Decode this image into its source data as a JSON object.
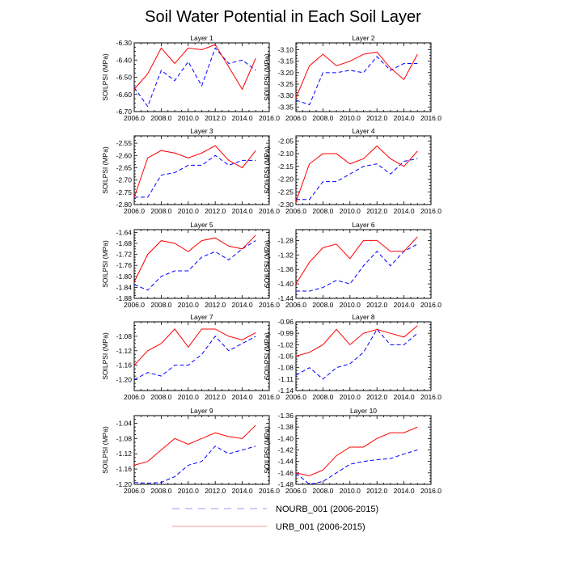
{
  "title": "Soil Water Potential in Each Soil Layer",
  "colors": {
    "nourb": "#0000ff",
    "urb": "#ff0000",
    "legend_nourb": "#9a9af5",
    "legend_urb": "#f29a9a"
  },
  "legend": [
    {
      "label": "NOURB_001 (2006-2015)",
      "style": "dashed",
      "color_key": "nourb"
    },
    {
      "label": "URB_001 (2006-2015)",
      "style": "solid",
      "color_key": "urb"
    }
  ],
  "chart_data": [
    {
      "type": "line",
      "title": "Layer 1",
      "ylabel": "SOILPSI  (MPa)",
      "xlim": [
        2006,
        2016
      ],
      "xticks": [
        2006,
        2008,
        2010,
        2012,
        2014,
        2016
      ],
      "xtick_labels": [
        "2006.0",
        "2008.0",
        "2010.0",
        "2012.0",
        "2014.0",
        "2016.0"
      ],
      "ylim": [
        -6.7,
        -6.3
      ],
      "yticks": [
        -6.7,
        -6.6,
        -6.5,
        -6.4,
        -6.3
      ],
      "ytick_labels": [
        "-6.70",
        "-6.60",
        "-6.50",
        "-6.40",
        "-6.30"
      ],
      "x": [
        2006,
        2007,
        2008,
        2009,
        2010,
        2011,
        2012,
        2013,
        2014,
        2015
      ],
      "series": [
        {
          "name": "NOURB_001 (2006-2015)",
          "values": [
            -6.56,
            -6.67,
            -6.46,
            -6.52,
            -6.41,
            -6.55,
            -6.33,
            -6.42,
            -6.4,
            -6.46
          ]
        },
        {
          "name": "URB_001 (2006-2015)",
          "values": [
            -6.57,
            -6.48,
            -6.33,
            -6.42,
            -6.33,
            -6.34,
            -6.31,
            -6.44,
            -6.57,
            -6.39
          ]
        }
      ]
    },
    {
      "type": "line",
      "title": "Layer 2",
      "ylabel": "SOILPSI  (MPa)",
      "xlim": [
        2006,
        2016
      ],
      "xticks": [
        2006,
        2008,
        2010,
        2012,
        2014,
        2016
      ],
      "xtick_labels": [
        "2006.0",
        "2008.0",
        "2010.0",
        "2012.0",
        "2014.0",
        "2016.0"
      ],
      "ylim": [
        -3.37,
        -3.07
      ],
      "yticks": [
        -3.35,
        -3.3,
        -3.25,
        -3.2,
        -3.15,
        -3.1
      ],
      "ytick_labels": [
        "-3.35",
        "-3.30",
        "-3.25",
        "-3.20",
        "-3.15",
        "-3.10"
      ],
      "x": [
        2006,
        2007,
        2008,
        2009,
        2010,
        2011,
        2012,
        2013,
        2014,
        2015
      ],
      "series": [
        {
          "name": "NOURB_001 (2006-2015)",
          "values": [
            -3.32,
            -3.34,
            -3.2,
            -3.2,
            -3.19,
            -3.2,
            -3.13,
            -3.19,
            -3.16,
            -3.16
          ]
        },
        {
          "name": "URB_001 (2006-2015)",
          "values": [
            -3.31,
            -3.17,
            -3.12,
            -3.17,
            -3.15,
            -3.12,
            -3.11,
            -3.18,
            -3.23,
            -3.12
          ]
        }
      ]
    },
    {
      "type": "line",
      "title": "Layer 3",
      "ylabel": "SOILPSI  (MPa)",
      "xlim": [
        2006,
        2016
      ],
      "xticks": [
        2006,
        2008,
        2010,
        2012,
        2014,
        2016
      ],
      "xtick_labels": [
        "2006.0",
        "2008.0",
        "2010.0",
        "2012.0",
        "2014.0",
        "2016.0"
      ],
      "ylim": [
        -2.8,
        -2.52
      ],
      "yticks": [
        -2.8,
        -2.75,
        -2.7,
        -2.65,
        -2.6,
        -2.55
      ],
      "ytick_labels": [
        "-2.80",
        "-2.75",
        "-2.70",
        "-2.65",
        "-2.60",
        "-2.55"
      ],
      "x": [
        2006,
        2007,
        2008,
        2009,
        2010,
        2011,
        2012,
        2013,
        2014,
        2015
      ],
      "series": [
        {
          "name": "NOURB_001 (2006-2015)",
          "values": [
            -2.77,
            -2.77,
            -2.68,
            -2.67,
            -2.64,
            -2.64,
            -2.6,
            -2.64,
            -2.62,
            -2.62
          ]
        },
        {
          "name": "URB_001 (2006-2015)",
          "values": [
            -2.77,
            -2.61,
            -2.58,
            -2.59,
            -2.61,
            -2.59,
            -2.56,
            -2.62,
            -2.65,
            -2.58
          ]
        }
      ]
    },
    {
      "type": "line",
      "title": "Layer 4",
      "ylabel": "SOILPSI  (MPa)",
      "xlim": [
        2006,
        2016
      ],
      "xticks": [
        2006,
        2008,
        2010,
        2012,
        2014,
        2016
      ],
      "xtick_labels": [
        "2006.0",
        "2008.0",
        "2010.0",
        "2012.0",
        "2014.0",
        "2016.0"
      ],
      "ylim": [
        -2.3,
        -2.03
      ],
      "yticks": [
        -2.3,
        -2.25,
        -2.2,
        -2.15,
        -2.1,
        -2.05
      ],
      "ytick_labels": [
        "-2.30",
        "-2.25",
        "-2.20",
        "-2.15",
        "-2.10",
        "-2.05"
      ],
      "x": [
        2006,
        2007,
        2008,
        2009,
        2010,
        2011,
        2012,
        2013,
        2014,
        2015
      ],
      "series": [
        {
          "name": "NOURB_001 (2006-2015)",
          "values": [
            -2.28,
            -2.28,
            -2.21,
            -2.21,
            -2.18,
            -2.15,
            -2.14,
            -2.18,
            -2.13,
            -2.12
          ]
        },
        {
          "name": "URB_001 (2006-2015)",
          "values": [
            -2.29,
            -2.14,
            -2.1,
            -2.1,
            -2.14,
            -2.12,
            -2.07,
            -2.12,
            -2.15,
            -2.09
          ]
        }
      ]
    },
    {
      "type": "line",
      "title": "Layer 5",
      "ylabel": "SOILPSI  (MPa)",
      "xlim": [
        2006,
        2016
      ],
      "xticks": [
        2006,
        2008,
        2010,
        2012,
        2014,
        2016
      ],
      "xtick_labels": [
        "2006.0",
        "2008.0",
        "2010.0",
        "2012.0",
        "2014.0",
        "2016.0"
      ],
      "ylim": [
        -1.88,
        -1.63
      ],
      "yticks": [
        -1.88,
        -1.84,
        -1.8,
        -1.76,
        -1.72,
        -1.68,
        -1.64
      ],
      "ytick_labels": [
        "-1.88",
        "-1.84",
        "-1.80",
        "-1.76",
        "-1.72",
        "-1.68",
        "-1.64"
      ],
      "x": [
        2006,
        2007,
        2008,
        2009,
        2010,
        2011,
        2012,
        2013,
        2014,
        2015
      ],
      "series": [
        {
          "name": "NOURB_001 (2006-2015)",
          "values": [
            -1.83,
            -1.85,
            -1.8,
            -1.78,
            -1.78,
            -1.73,
            -1.71,
            -1.74,
            -1.7,
            -1.67
          ]
        },
        {
          "name": "URB_001 (2006-2015)",
          "values": [
            -1.82,
            -1.72,
            -1.67,
            -1.68,
            -1.71,
            -1.67,
            -1.66,
            -1.69,
            -1.7,
            -1.65
          ]
        }
      ]
    },
    {
      "type": "line",
      "title": "Layer 6",
      "ylabel": "SOILPSI  (MPa)",
      "xlim": [
        2006,
        2016
      ],
      "xticks": [
        2006,
        2008,
        2010,
        2012,
        2014,
        2016
      ],
      "xtick_labels": [
        "2006.0",
        "2008.0",
        "2010.0",
        "2012.0",
        "2014.0",
        "2016.0"
      ],
      "ylim": [
        -1.44,
        -1.25
      ],
      "yticks": [
        -1.44,
        -1.4,
        -1.36,
        -1.32,
        -1.28
      ],
      "ytick_labels": [
        "-1.44",
        "-1.40",
        "-1.36",
        "-1.32",
        "-1.28"
      ],
      "x": [
        2006,
        2007,
        2008,
        2009,
        2010,
        2011,
        2012,
        2013,
        2014,
        2015
      ],
      "series": [
        {
          "name": "NOURB_001 (2006-2015)",
          "values": [
            -1.42,
            -1.42,
            -1.41,
            -1.39,
            -1.4,
            -1.35,
            -1.31,
            -1.35,
            -1.31,
            -1.29
          ]
        },
        {
          "name": "URB_001 (2006-2015)",
          "values": [
            -1.4,
            -1.34,
            -1.3,
            -1.29,
            -1.33,
            -1.28,
            -1.28,
            -1.31,
            -1.31,
            -1.27
          ]
        }
      ]
    },
    {
      "type": "line",
      "title": "Layer 7",
      "ylabel": "SOILPSI  (MPa)",
      "xlim": [
        2006,
        2016
      ],
      "xticks": [
        2006,
        2008,
        2010,
        2012,
        2014,
        2016
      ],
      "xtick_labels": [
        "2006.0",
        "2008.0",
        "2010.0",
        "2012.0",
        "2014.0",
        "2016.0"
      ],
      "ylim": [
        -1.23,
        -1.04
      ],
      "yticks": [
        -1.2,
        -1.16,
        -1.12,
        -1.08
      ],
      "ytick_labels": [
        "-1.20",
        "-1.16",
        "-1.12",
        "-1.08"
      ],
      "x": [
        2006,
        2007,
        2008,
        2009,
        2010,
        2011,
        2012,
        2013,
        2014,
        2015
      ],
      "series": [
        {
          "name": "NOURB_001 (2006-2015)",
          "values": [
            -1.2,
            -1.18,
            -1.19,
            -1.16,
            -1.16,
            -1.13,
            -1.08,
            -1.12,
            -1.1,
            -1.08
          ]
        },
        {
          "name": "URB_001 (2006-2015)",
          "values": [
            -1.16,
            -1.12,
            -1.1,
            -1.06,
            -1.11,
            -1.06,
            -1.06,
            -1.08,
            -1.09,
            -1.07
          ]
        }
      ]
    },
    {
      "type": "line",
      "title": "Layer 8",
      "ylabel": "SOILPSI  (MPa)",
      "xlim": [
        2006,
        2016
      ],
      "xticks": [
        2006,
        2008,
        2010,
        2012,
        2014,
        2016
      ],
      "xtick_labels": [
        "2006.0",
        "2008.0",
        "2010.0",
        "2012.0",
        "2014.0",
        "2016.0"
      ],
      "ylim": [
        -1.14,
        -0.96
      ],
      "yticks": [
        -1.14,
        -1.11,
        -1.08,
        -1.05,
        -1.02,
        -0.99,
        -0.96
      ],
      "ytick_labels": [
        "-1.14",
        "-1.11",
        "-1.08",
        "-1.05",
        "-1.02",
        "-0.99",
        "-0.96"
      ],
      "x": [
        2006,
        2007,
        2008,
        2009,
        2010,
        2011,
        2012,
        2013,
        2014,
        2015
      ],
      "series": [
        {
          "name": "NOURB_001 (2006-2015)",
          "values": [
            -1.1,
            -1.08,
            -1.11,
            -1.08,
            -1.07,
            -1.04,
            -0.98,
            -1.02,
            -1.02,
            -0.99
          ]
        },
        {
          "name": "URB_001 (2006-2015)",
          "values": [
            -1.05,
            -1.04,
            -1.02,
            -0.98,
            -1.02,
            -0.99,
            -0.98,
            -0.99,
            -1.0,
            -0.97
          ]
        }
      ]
    },
    {
      "type": "line",
      "title": "Layer 9",
      "ylabel": "SOILPSI  (MPa)",
      "xlim": [
        2006,
        2016
      ],
      "xticks": [
        2006,
        2008,
        2010,
        2012,
        2014,
        2016
      ],
      "xtick_labels": [
        "2006.0",
        "2008.0",
        "2010.0",
        "2012.0",
        "2014.0",
        "2016.0"
      ],
      "ylim": [
        -1.2,
        -1.02
      ],
      "yticks": [
        -1.2,
        -1.16,
        -1.12,
        -1.08,
        -1.04
      ],
      "ytick_labels": [
        "-1.20",
        "-1.16",
        "-1.12",
        "-1.08",
        "-1.04"
      ],
      "x": [
        2006,
        2007,
        2008,
        2009,
        2010,
        2011,
        2012,
        2013,
        2014,
        2015
      ],
      "series": [
        {
          "name": "NOURB_001 (2006-2015)",
          "values": [
            -1.195,
            -1.197,
            -1.195,
            -1.18,
            -1.15,
            -1.14,
            -1.1,
            -1.12,
            -1.11,
            -1.1
          ]
        },
        {
          "name": "URB_001 (2006-2015)",
          "values": [
            -1.15,
            -1.14,
            -1.11,
            -1.08,
            -1.095,
            -1.08,
            -1.065,
            -1.075,
            -1.08,
            -1.045
          ]
        }
      ]
    },
    {
      "type": "line",
      "title": "Layer 10",
      "ylabel": "SOILPSI  (MPa)",
      "xlim": [
        2006,
        2016
      ],
      "xticks": [
        2006,
        2008,
        2010,
        2012,
        2014,
        2016
      ],
      "xtick_labels": [
        "2006.0",
        "2008.0",
        "2010.0",
        "2012.0",
        "2014.0",
        "2016.0"
      ],
      "ylim": [
        -1.48,
        -1.36
      ],
      "yticks": [
        -1.48,
        -1.46,
        -1.44,
        -1.42,
        -1.4,
        -1.38,
        -1.36
      ],
      "ytick_labels": [
        "-1.48",
        "-1.46",
        "-1.44",
        "-1.42",
        "-1.40",
        "-1.38",
        "-1.36"
      ],
      "x": [
        2006,
        2007,
        2008,
        2009,
        2010,
        2011,
        2012,
        2013,
        2014,
        2015
      ],
      "series": [
        {
          "name": "NOURB_001 (2006-2015)",
          "values": [
            -1.46,
            -1.48,
            -1.475,
            -1.46,
            -1.445,
            -1.44,
            -1.437,
            -1.435,
            -1.427,
            -1.42
          ]
        },
        {
          "name": "URB_001 (2006-2015)",
          "values": [
            -1.46,
            -1.465,
            -1.455,
            -1.43,
            -1.415,
            -1.415,
            -1.4,
            -1.39,
            -1.39,
            -1.38
          ]
        }
      ]
    }
  ]
}
